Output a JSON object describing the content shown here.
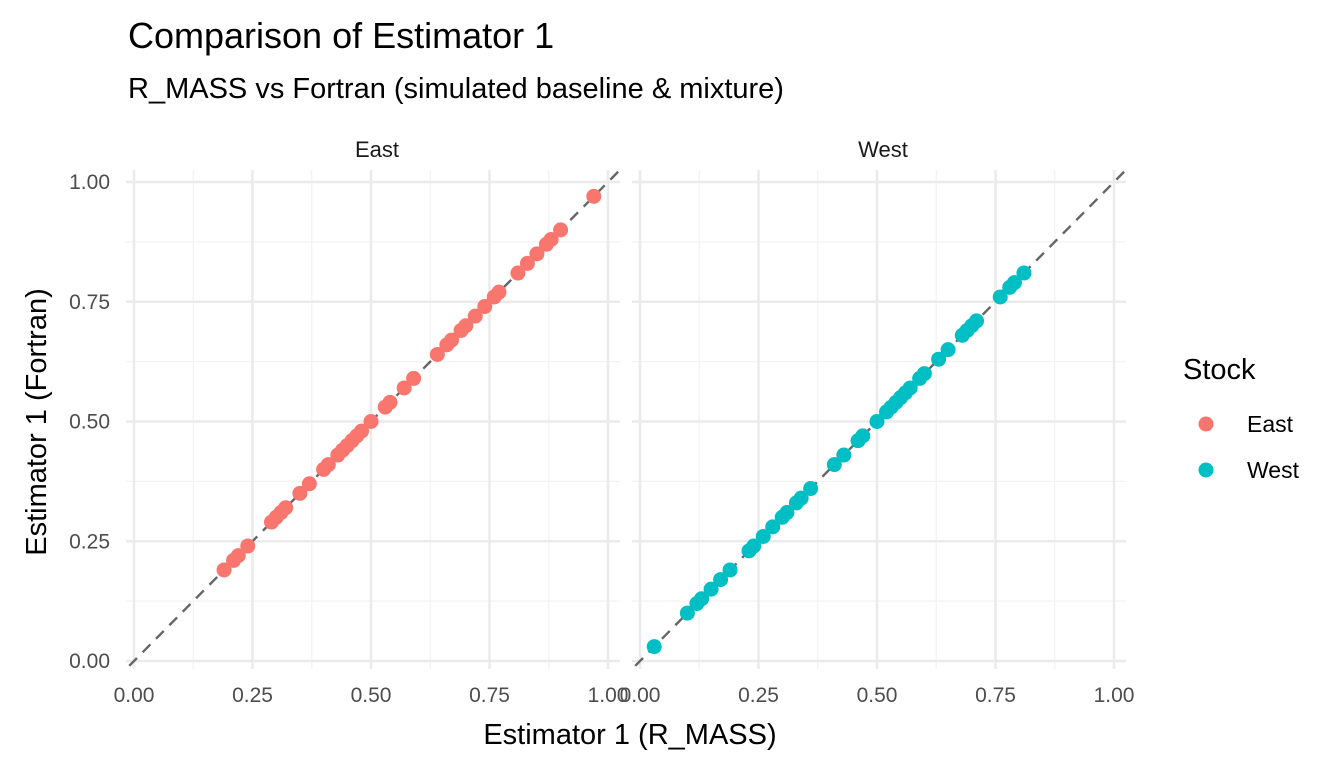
{
  "chart_data": {
    "type": "scatter",
    "title": "Comparison of Estimator 1",
    "subtitle": "R_MASS vs Fortran (simulated baseline & mixture)",
    "xlabel": "Estimator 1 (R_MASS)",
    "ylabel": "Estimator 1 (Fortran)",
    "xlim": [
      0,
      1
    ],
    "ylim": [
      0,
      1
    ],
    "x_ticks": [
      "0.00",
      "0.25",
      "0.50",
      "0.75",
      "1.00"
    ],
    "y_ticks": [
      "0.00",
      "0.25",
      "0.50",
      "0.75",
      "1.00"
    ],
    "grid": true,
    "reference_line": {
      "slope": 1,
      "intercept": 0,
      "style": "dashed",
      "color": "#666666"
    },
    "legend": {
      "title": "Stock",
      "placement": "right",
      "entries": [
        {
          "label": "East",
          "color": "#F8766D"
        },
        {
          "label": "West",
          "color": "#00BFC4"
        }
      ]
    },
    "facets": [
      {
        "label": "East",
        "series": "East",
        "color": "#F8766D",
        "points": [
          [
            0.19,
            0.19
          ],
          [
            0.21,
            0.21
          ],
          [
            0.22,
            0.22
          ],
          [
            0.24,
            0.24
          ],
          [
            0.29,
            0.29
          ],
          [
            0.3,
            0.3
          ],
          [
            0.31,
            0.31
          ],
          [
            0.32,
            0.32
          ],
          [
            0.35,
            0.35
          ],
          [
            0.37,
            0.37
          ],
          [
            0.4,
            0.4
          ],
          [
            0.41,
            0.41
          ],
          [
            0.43,
            0.43
          ],
          [
            0.44,
            0.44
          ],
          [
            0.45,
            0.45
          ],
          [
            0.46,
            0.46
          ],
          [
            0.47,
            0.47
          ],
          [
            0.48,
            0.48
          ],
          [
            0.5,
            0.5
          ],
          [
            0.53,
            0.53
          ],
          [
            0.54,
            0.54
          ],
          [
            0.57,
            0.57
          ],
          [
            0.59,
            0.59
          ],
          [
            0.64,
            0.64
          ],
          [
            0.66,
            0.66
          ],
          [
            0.67,
            0.67
          ],
          [
            0.69,
            0.69
          ],
          [
            0.7,
            0.7
          ],
          [
            0.72,
            0.72
          ],
          [
            0.74,
            0.74
          ],
          [
            0.76,
            0.76
          ],
          [
            0.77,
            0.77
          ],
          [
            0.81,
            0.81
          ],
          [
            0.83,
            0.83
          ],
          [
            0.85,
            0.85
          ],
          [
            0.87,
            0.87
          ],
          [
            0.88,
            0.88
          ],
          [
            0.9,
            0.9
          ],
          [
            0.97,
            0.97
          ]
        ]
      },
      {
        "label": "West",
        "series": "West",
        "color": "#00BFC4",
        "points": [
          [
            0.03,
            0.03
          ],
          [
            0.1,
            0.1
          ],
          [
            0.12,
            0.12
          ],
          [
            0.13,
            0.13
          ],
          [
            0.15,
            0.15
          ],
          [
            0.17,
            0.17
          ],
          [
            0.19,
            0.19
          ],
          [
            0.23,
            0.23
          ],
          [
            0.24,
            0.24
          ],
          [
            0.26,
            0.26
          ],
          [
            0.28,
            0.28
          ],
          [
            0.3,
            0.3
          ],
          [
            0.31,
            0.31
          ],
          [
            0.33,
            0.33
          ],
          [
            0.34,
            0.34
          ],
          [
            0.36,
            0.36
          ],
          [
            0.41,
            0.41
          ],
          [
            0.43,
            0.43
          ],
          [
            0.46,
            0.46
          ],
          [
            0.47,
            0.47
          ],
          [
            0.5,
            0.5
          ],
          [
            0.52,
            0.52
          ],
          [
            0.53,
            0.53
          ],
          [
            0.54,
            0.54
          ],
          [
            0.55,
            0.55
          ],
          [
            0.56,
            0.56
          ],
          [
            0.57,
            0.57
          ],
          [
            0.59,
            0.59
          ],
          [
            0.6,
            0.6
          ],
          [
            0.63,
            0.63
          ],
          [
            0.65,
            0.65
          ],
          [
            0.68,
            0.68
          ],
          [
            0.69,
            0.69
          ],
          [
            0.7,
            0.7
          ],
          [
            0.71,
            0.71
          ],
          [
            0.76,
            0.76
          ],
          [
            0.78,
            0.78
          ],
          [
            0.79,
            0.79
          ],
          [
            0.81,
            0.81
          ]
        ]
      }
    ]
  }
}
